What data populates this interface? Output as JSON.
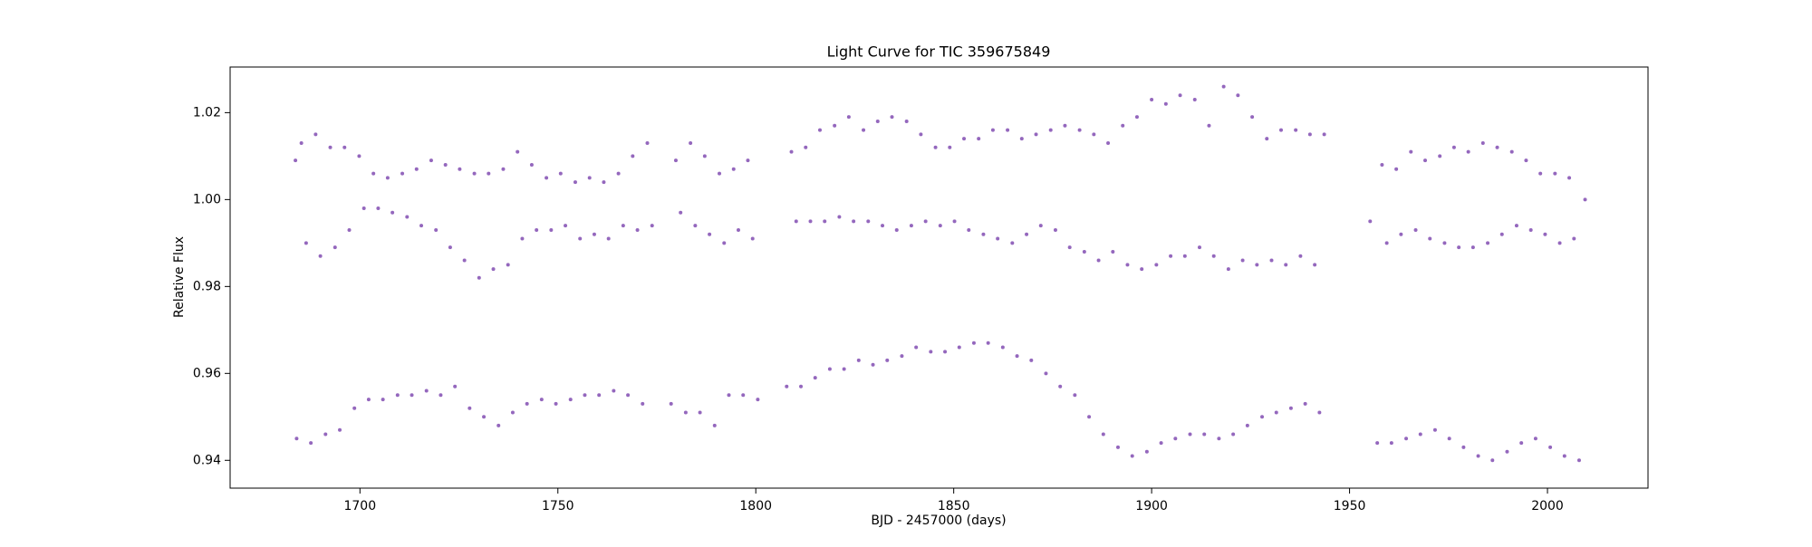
{
  "chart_data": {
    "type": "scatter",
    "title": "Light Curve for TIC 359675849",
    "xlabel": "BJD - 2457000 (days)",
    "ylabel": "Relative Flux",
    "color": "#9467bd",
    "xlim": [
      1667.2,
      2025.4
    ],
    "ylim": [
      0.9336,
      1.0305
    ],
    "xticks": [
      1700,
      1750,
      1800,
      1850,
      1900,
      1950,
      2000
    ],
    "yticks": [
      0.94,
      0.96,
      0.98,
      {
        "value": 1,
        "label": "1.00"
      },
      1.02
    ],
    "x": [
      1683.7,
      1684.0,
      1685.2,
      1686.4,
      1687.6,
      1688.8,
      1690.0,
      1691.3,
      1692.5,
      1693.7,
      1694.9,
      1696.1,
      1697.3,
      1698.6,
      1699.8,
      1701.0,
      1702.2,
      1703.4,
      1704.6,
      1705.8,
      1707.0,
      1708.2,
      1709.5,
      1710.7,
      1711.9,
      1713.1,
      1714.3,
      1715.5,
      1716.8,
      1718.0,
      1719.2,
      1720.4,
      1721.6,
      1722.8,
      1724.0,
      1725.2,
      1726.4,
      1727.7,
      1728.9,
      1730.1,
      1731.3,
      1732.5,
      1733.7,
      1735.0,
      1736.2,
      1737.4,
      1738.6,
      1739.8,
      1741.0,
      1742.2,
      1743.4,
      1744.6,
      1745.9,
      1747.1,
      1748.3,
      1749.5,
      1750.7,
      1751.9,
      1753.2,
      1754.4,
      1755.6,
      1756.8,
      1758.0,
      1759.2,
      1760.4,
      1761.6,
      1762.8,
      1764.1,
      1765.3,
      1766.5,
      1767.7,
      1768.9,
      1770.1,
      1771.4,
      1772.6,
      1773.8,
      1778.6,
      1779.8,
      1781.0,
      1782.3,
      1783.5,
      1784.7,
      1785.9,
      1787.1,
      1788.3,
      1789.6,
      1790.8,
      1792.0,
      1793.2,
      1794.4,
      1795.6,
      1796.8,
      1798.0,
      1799.2,
      1800.5,
      1807.8,
      1809.0,
      1810.2,
      1811.4,
      1812.6,
      1813.8,
      1815.0,
      1816.2,
      1817.4,
      1818.7,
      1819.9,
      1821.1,
      1822.3,
      1823.5,
      1824.7,
      1826.0,
      1827.2,
      1828.4,
      1829.6,
      1830.8,
      1832.0,
      1833.2,
      1834.4,
      1835.6,
      1836.9,
      1838.1,
      1839.3,
      1840.5,
      1841.7,
      1842.9,
      1844.2,
      1845.4,
      1846.6,
      1847.8,
      1849.0,
      1850.2,
      1851.4,
      1852.6,
      1853.8,
      1855.1,
      1856.3,
      1857.5,
      1858.7,
      1859.9,
      1861.1,
      1862.4,
      1863.6,
      1864.8,
      1866.0,
      1867.2,
      1868.4,
      1869.6,
      1870.8,
      1872.0,
      1873.3,
      1874.5,
      1875.7,
      1876.9,
      1878.1,
      1879.3,
      1880.6,
      1881.8,
      1883.0,
      1884.2,
      1885.4,
      1886.6,
      1887.8,
      1889.0,
      1890.2,
      1891.5,
      1892.7,
      1893.9,
      1895.1,
      1896.3,
      1897.5,
      1898.8,
      1900.0,
      1901.2,
      1902.4,
      1903.6,
      1904.8,
      1906.0,
      1907.2,
      1908.4,
      1909.7,
      1910.9,
      1912.1,
      1913.3,
      1914.5,
      1915.7,
      1917.0,
      1918.2,
      1919.4,
      1920.6,
      1921.8,
      1923.0,
      1924.2,
      1925.4,
      1926.6,
      1927.9,
      1929.1,
      1930.3,
      1931.5,
      1932.7,
      1933.9,
      1935.2,
      1936.4,
      1937.6,
      1938.8,
      1940.0,
      1941.2,
      1942.4,
      1943.6,
      1955.2,
      1957.0,
      1958.2,
      1959.4,
      1960.6,
      1961.8,
      1963.0,
      1964.3,
      1965.5,
      1966.7,
      1967.9,
      1969.1,
      1970.3,
      1971.6,
      1972.8,
      1974.0,
      1975.2,
      1976.4,
      1977.6,
      1978.8,
      1980.0,
      1981.2,
      1982.5,
      1983.7,
      1984.9,
      1986.1,
      1987.3,
      1988.5,
      1989.8,
      1991.0,
      1992.2,
      1993.4,
      1994.6,
      1995.8,
      1997.0,
      1998.2,
      1999.4,
      2000.7,
      2001.9,
      2003.1,
      2004.3,
      2005.5,
      2006.7,
      2008.0,
      2009.5
    ],
    "values": [
      1.009,
      0.945,
      1.013,
      0.99,
      0.944,
      1.015,
      0.987,
      0.946,
      1.012,
      0.989,
      0.947,
      1.012,
      0.993,
      0.952,
      1.01,
      0.998,
      0.954,
      1.006,
      0.998,
      0.954,
      1.005,
      0.997,
      0.955,
      1.006,
      0.996,
      0.955,
      1.007,
      0.994,
      0.956,
      1.009,
      0.993,
      0.955,
      1.008,
      0.989,
      0.957,
      1.007,
      0.986,
      0.952,
      1.006,
      0.982,
      0.95,
      1.006,
      0.984,
      0.948,
      1.007,
      0.985,
      0.951,
      1.011,
      0.991,
      0.953,
      1.008,
      0.993,
      0.954,
      1.005,
      0.993,
      0.953,
      1.006,
      0.994,
      0.954,
      1.004,
      0.991,
      0.955,
      1.005,
      0.992,
      0.955,
      1.004,
      0.991,
      0.956,
      1.006,
      0.994,
      0.955,
      1.01,
      0.993,
      0.953,
      1.013,
      0.994,
      0.953,
      1.009,
      0.997,
      0.951,
      1.013,
      0.994,
      0.951,
      1.01,
      0.992,
      0.948,
      1.006,
      0.99,
      0.955,
      1.007,
      0.993,
      0.955,
      1.009,
      0.991,
      0.954,
      0.957,
      1.011,
      0.995,
      0.957,
      1.012,
      0.995,
      0.959,
      1.016,
      0.995,
      0.961,
      1.017,
      0.996,
      0.961,
      1.019,
      0.995,
      0.963,
      1.016,
      0.995,
      0.962,
      1.018,
      0.994,
      0.963,
      1.019,
      0.993,
      0.964,
      1.018,
      0.994,
      0.966,
      1.015,
      0.995,
      0.965,
      1.012,
      0.994,
      0.965,
      1.012,
      0.995,
      0.966,
      1.014,
      0.993,
      0.967,
      1.014,
      0.992,
      0.967,
      1.016,
      0.991,
      0.966,
      1.016,
      0.99,
      0.964,
      1.014,
      0.992,
      0.963,
      1.015,
      0.994,
      0.96,
      1.016,
      0.993,
      0.957,
      1.017,
      0.989,
      0.955,
      1.016,
      0.988,
      0.95,
      1.015,
      0.986,
      0.946,
      1.013,
      0.988,
      0.943,
      1.017,
      0.985,
      0.941,
      1.019,
      0.984,
      0.942,
      1.023,
      0.985,
      0.944,
      1.022,
      0.987,
      0.945,
      1.024,
      0.987,
      0.946,
      1.023,
      0.989,
      0.946,
      1.017,
      0.987,
      0.945,
      1.026,
      0.984,
      0.946,
      1.024,
      0.986,
      0.948,
      1.019,
      0.985,
      0.95,
      1.014,
      0.986,
      0.951,
      1.016,
      0.985,
      0.952,
      1.016,
      0.987,
      0.953,
      1.015,
      0.985,
      0.951,
      1.015,
      0.995,
      0.944,
      1.008,
      0.99,
      0.944,
      1.007,
      0.992,
      0.945,
      1.011,
      0.993,
      0.946,
      1.009,
      0.991,
      0.947,
      1.01,
      0.99,
      0.945,
      1.012,
      0.989,
      0.943,
      1.011,
      0.989,
      0.941,
      1.013,
      0.99,
      0.94,
      1.012,
      0.992,
      0.942,
      1.011,
      0.994,
      0.944,
      1.009,
      0.993,
      0.945,
      1.006,
      0.992,
      0.943,
      1.006,
      0.99,
      0.941,
      1.005,
      0.991,
      0.94,
      1.0
    ]
  }
}
